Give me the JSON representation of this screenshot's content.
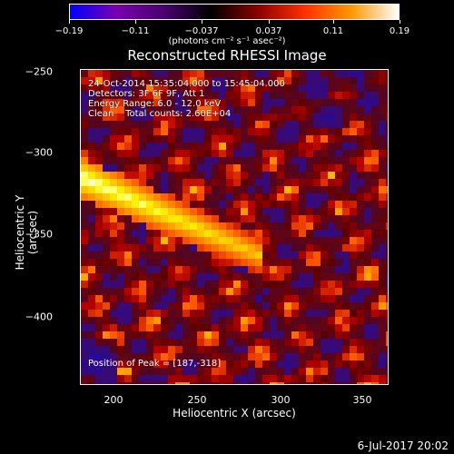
{
  "colorbar": {
    "ticks": [
      "−0.19",
      "−0.11",
      "−0.037",
      "0.037",
      "0.11",
      "0.19"
    ],
    "units": "(photons cm⁻² s⁻¹ asec⁻²)",
    "colors": [
      "#0000ff",
      "#7a00b0",
      "#4a0070",
      "#000000",
      "#8a0000",
      "#ff3000",
      "#ff9900",
      "#ffffff"
    ]
  },
  "title": "Reconstructed RHESSI Image",
  "info": {
    "time_range": "24-Oct-2014 15:35:04.000 to 15:45:04.000",
    "detectors": "Detectors: 3F 6F 9F, Att 1",
    "energy": "Energy Range: 6.0 - 12.0 keV",
    "clean": "Clean    Total counts: 2.60E+04"
  },
  "peak_label": "Position of Peak = [187,-318]",
  "axes": {
    "xlabel": "Heliocentric X (arcsec)",
    "ylabel": "Heliocentric Y (arcsec)",
    "xticks": [
      "200",
      "250",
      "300",
      "350"
    ],
    "yticks": [
      "−250",
      "−300",
      "−350",
      "−400"
    ],
    "xrange": [
      172,
      365
    ],
    "yrange": [
      -247,
      -440
    ]
  },
  "datestamp": "6-Jul-2017 20:02"
}
